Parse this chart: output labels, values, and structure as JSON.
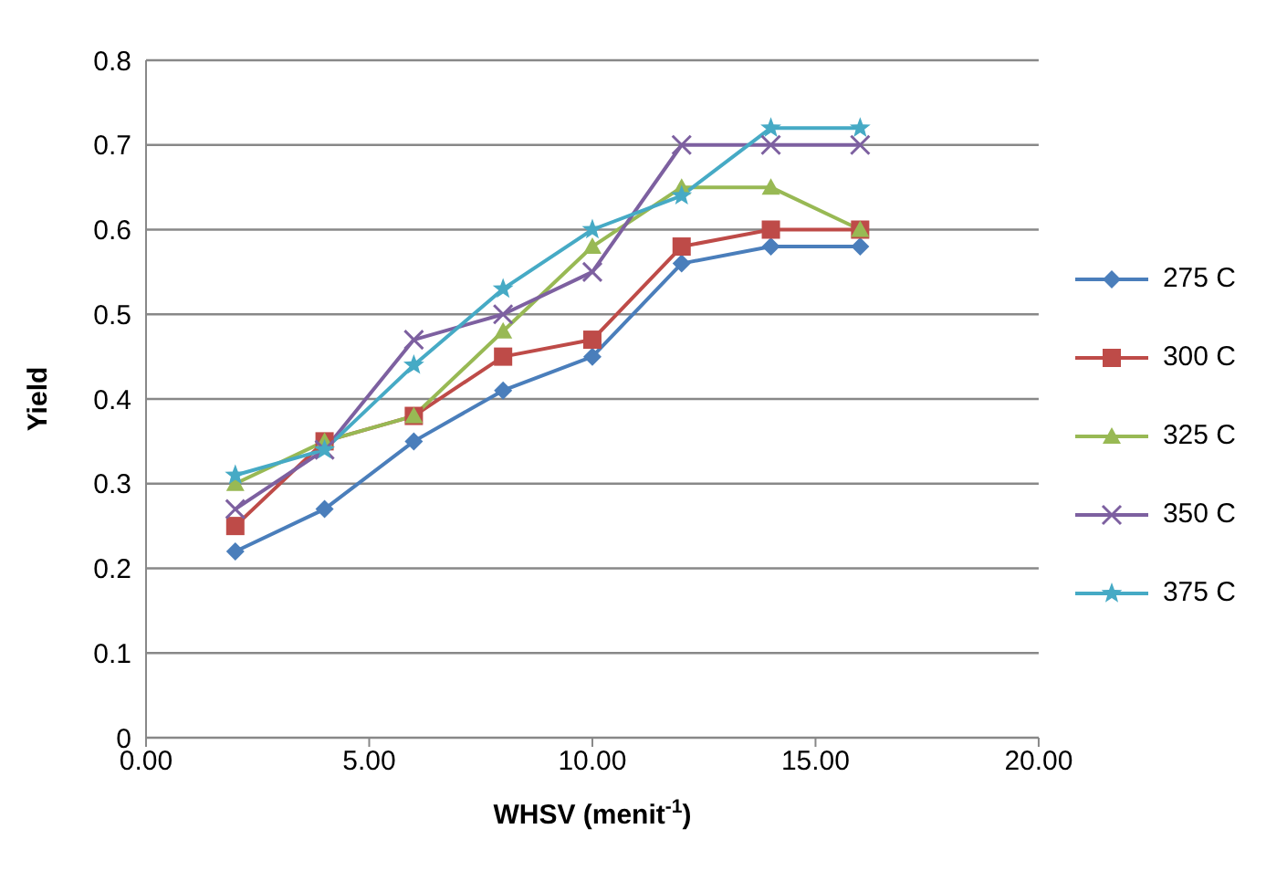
{
  "chart_data": {
    "type": "line",
    "xlabel": "WHSV (menit$^{-1}$)",
    "ylabel": "Yield",
    "x": [
      2,
      4,
      6,
      8,
      10,
      12,
      14,
      16
    ],
    "series": [
      {
        "name": "275 C",
        "color": "#4a7ebb",
        "marker": "diamond",
        "values": [
          0.22,
          0.27,
          0.35,
          0.41,
          0.45,
          0.56,
          0.58,
          0.58
        ]
      },
      {
        "name": "300 C",
        "color": "#be4b48",
        "marker": "square",
        "values": [
          0.25,
          0.35,
          0.38,
          0.45,
          0.47,
          0.58,
          0.6,
          0.6
        ]
      },
      {
        "name": "325 C",
        "color": "#98b954",
        "marker": "triangle",
        "values": [
          0.3,
          0.35,
          0.38,
          0.48,
          0.58,
          0.65,
          0.65,
          0.6
        ]
      },
      {
        "name": "350 C",
        "color": "#7d60a0",
        "marker": "cross",
        "values": [
          0.27,
          0.34,
          0.47,
          0.5,
          0.55,
          0.7,
          0.7,
          0.7
        ]
      },
      {
        "name": "375 C",
        "color": "#46aac5",
        "marker": "star",
        "values": [
          0.31,
          0.34,
          0.44,
          0.53,
          0.6,
          0.64,
          0.72,
          0.72
        ]
      }
    ],
    "xlim": [
      0,
      20
    ],
    "xticks": [
      {
        "value": 0,
        "label": "0.00"
      },
      {
        "value": 5,
        "label": "5.00"
      },
      {
        "value": 10,
        "label": "10.00"
      },
      {
        "value": 15,
        "label": "15.00"
      },
      {
        "value": 20,
        "label": "20.00"
      }
    ],
    "ylim": [
      0,
      0.8
    ],
    "yticks": [
      0,
      0.1,
      0.2,
      0.3,
      0.4,
      0.5,
      0.6,
      0.7,
      0.8
    ],
    "grid": "y",
    "legend": "right",
    "line_style": "solid"
  }
}
